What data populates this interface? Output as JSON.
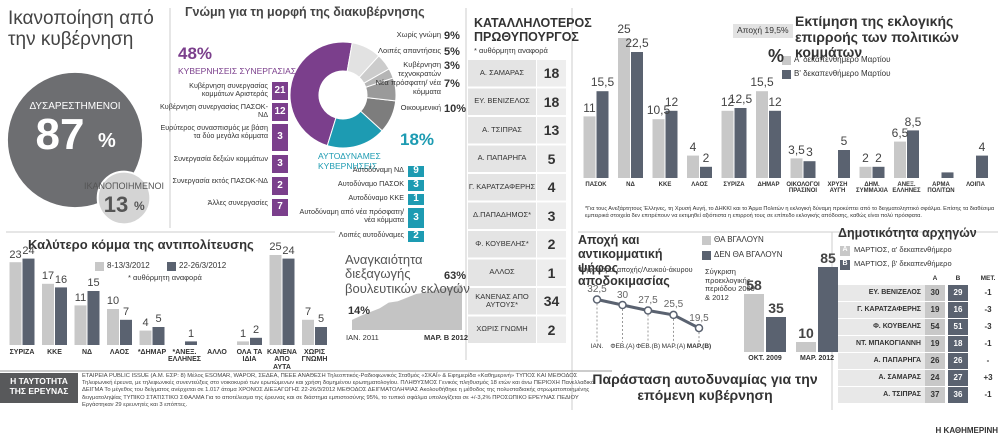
{
  "chart_data": [
    {
      "type": "bubble",
      "title": "Ικανοποίηση από την κυβέρνηση",
      "categories": [
        "ΔΥΣΑΡΕΣΤΗΜΕΝΟΙ",
        "ΙΚΑΝΟΠΟΙΗΜΕΝΟΙ"
      ],
      "values": [
        87,
        13
      ],
      "unit": "%",
      "colors": [
        "#6d6e71",
        "#d4d4d4"
      ]
    },
    {
      "type": "donut",
      "title": "Γνώμη για τη μορφή της διακυβέρνησης",
      "categories": [
        "ΚΥΒΕΡΝΗΣΕΙΣ ΣΥΝΕΡΓΑΣΙΑΣ",
        "ΑΥΤΟΔΥΝΑΜΕΣ ΚΥΒΕΡΝΗΣΕΙΣ",
        "Οικουμενική",
        "Νέα πρόσφατη/ νέα κόμματα",
        "Κυβέρνηση τεχνοκρατών",
        "Λοιπές απαντήσεις",
        "Χωρίς γνώμη"
      ],
      "values": [
        48,
        18,
        10,
        7,
        3,
        5,
        9
      ],
      "value_labels": [
        "48%",
        "18%",
        "10%",
        "7%",
        "3%",
        "5%",
        "9%"
      ],
      "colors": [
        "#7b3f8c",
        "#1d9bb2",
        "#7d7d7d",
        "#9a9a9a",
        "#b5b5b5",
        "#cccccc",
        "#e2e2e2"
      ],
      "breakdowns": [
        {
          "categories": [
            "Κυβέρνηση συνεργασίας κομμάτων Αριστεράς",
            "Κυβέρνηση συνεργασίας ΠΑΣΟΚ-ΝΔ",
            "Ευρύτερος συνασπισμός με βάση τα δύο μεγάλα κόμματα",
            "Συνεργασία δεξιών κομμάτων",
            "Συνεργασία εκτός ΠΑΣΟΚ-ΝΔ",
            "Άλλες συνεργασίες"
          ],
          "values": [
            21,
            12,
            3,
            3,
            2,
            7
          ]
        },
        {
          "categories": [
            "Αυτοδύναμη ΝΔ",
            "Αυτοδύναμο ΠΑΣΟΚ",
            "Αυτοδύναμο ΚΚΕ",
            "Αυτοδύναμη από νέα πρόσφατη/ νέα κόμματα",
            "Λοιπές αυτοδύναμες"
          ],
          "values": [
            9,
            3,
            1,
            3,
            2
          ]
        }
      ]
    },
    {
      "type": "ranking",
      "title": "ΚΑΤΑΛΛΗΛΟΤΕΡΟΣ ΠΡΩΘΥΠΟΥΡΓΟΣ",
      "subtitle": "* αυθόρμητη αναφορά",
      "categories": [
        "Α. ΣΑΜΑΡΑΣ",
        "ΕΥ. ΒΕΝΙΖΕΛΟΣ",
        "Α. ΤΣΙΠΡΑΣ",
        "Α. ΠΑΠΑΡΗΓΑ",
        "Γ. ΚΑΡΑΤΖΑΦΕΡΗΣ",
        "Δ.ΠΑΠΑΔΗΜΟΣ*",
        "Φ. ΚΟΥΒΕΛΗΣ*",
        "ΑΛΛΟΣ",
        "ΚΑΝΕΝΑΣ ΑΠΟ ΑΥΤΟΥΣ*",
        "ΧΩΡΙΣ ΓΝΩΜΗ"
      ],
      "values": [
        18,
        18,
        13,
        5,
        4,
        3,
        2,
        1,
        34,
        2
      ]
    },
    {
      "type": "bar",
      "title": "Εκτίμηση της εκλογικής επιρροής των πολιτικών κομμάτων",
      "unit": "%",
      "note": "Αποχή 19,5%",
      "categories": [
        "ΠΑΣΟΚ",
        "ΝΔ",
        "ΚΚΕ",
        "ΛΑΟΣ",
        "ΣΥΡΙΖΑ",
        "ΔΗΜΑΡ",
        "ΟΙΚΟΛΟΓΟΙ ΠΡΑΣΙΝΟΙ",
        "ΧΡΥΣΗ ΑΥΓΗ",
        "ΔΗΜ. ΣΥΜΜΑΧΙΑ",
        "ΑΝΕΞ. ΕΛΛΗΝΕΣ",
        "ΑΡΜΑ ΠΟΛΙΤΩΝ",
        "ΛΟΙΠΑ"
      ],
      "series": [
        {
          "name": "Α' δεκαπενθήμερο Μαρτίου",
          "color": "#c8c8c8",
          "values": [
            11,
            25,
            10.5,
            4,
            12,
            15.5,
            3.5,
            null,
            2,
            6.5,
            null,
            null
          ],
          "value_labels": [
            "11",
            "25",
            "10,5",
            "4",
            "12",
            "15,5",
            "3,5",
            null,
            "2",
            "6,5",
            null,
            null
          ]
        },
        {
          "name": "Β' δεκαπενθήμερο Μαρτίου",
          "color": "#5a6270",
          "values": [
            15.5,
            22.5,
            12,
            2,
            12.5,
            12,
            3,
            5,
            2,
            8.5,
            1,
            4
          ],
          "value_labels": [
            "15,5",
            "22,5",
            "12",
            "2",
            "12,5",
            "12",
            "3",
            "5",
            "2",
            "8,5",
            null,
            "4"
          ]
        }
      ],
      "footnote": "*Για τους Ανεξάρτητους Έλληνες, τη Χρυσή Αυγή, το ΔΗΚΚΙ και το Άρμα Πολιτών η εκλογική δύναμη προκύπτει από το δειγματοληπτικό σφάλμα. Επίσης τα διαθέσιμα εμπειρικά στοιχεία δεν επιτρέπουν να εκτιμηθεί αξιόπιστα η επιρροή τους σε επίπεδο εκλογικής απόδοσης, καθώς είναι πολύ πρόσφατα."
    },
    {
      "type": "bar",
      "title": "Καλύτερο κόμμα της αντιπολίτευσης",
      "subtitle": "* αυθόρμητη αναφορά",
      "categories": [
        "ΣΥΡΙΖΑ",
        "ΚΚΕ",
        "ΝΔ",
        "ΛΑΟΣ",
        "*ΔΗΜΑΡ",
        "*ΑΝΕΞ. ΕΛΛΗΝΕΣ",
        "ΑΛΛΟ",
        "ΟΛΑ ΤΑ ΙΔΙΑ",
        "ΚΑΝΕΝΑ ΑΠΟ ΑΥΤΑ",
        "ΧΩΡΙΣ ΓΝΩΜΗ"
      ],
      "series": [
        {
          "name": "8-13/3/2012",
          "color": "#c8c8c8",
          "values": [
            23,
            17,
            11,
            10,
            4,
            null,
            null,
            1,
            25,
            7
          ]
        },
        {
          "name": "22-26/3/2012",
          "color": "#5a6270",
          "values": [
            24,
            16,
            15,
            7,
            5,
            1,
            null,
            2,
            24,
            5
          ]
        }
      ]
    },
    {
      "type": "area",
      "title": "Αναγκαιότητα διεξαγωγής βουλευτικών εκλογών",
      "categories": [
        "ΙΑΝ. 2011",
        null,
        null,
        null,
        null,
        null,
        null,
        null,
        null,
        null,
        null,
        null,
        "ΜΑΡ. Β 2012"
      ],
      "values": [
        14,
        20,
        25,
        30,
        38,
        40,
        45,
        50,
        52,
        55,
        58,
        60,
        63
      ],
      "value_labels": [
        "14%",
        null,
        null,
        null,
        null,
        null,
        null,
        null,
        null,
        null,
        null,
        null,
        "63%"
      ],
      "color": "#c4c4c4"
    },
    {
      "type": "line",
      "title": "Αποχή και αντικομματική ψήφος αποδοκιμασίας",
      "subtitle": "Ψηφοφόροι αποχής/Λευκού-άκυρου",
      "categories": [
        "ΙΑΝ.",
        "ΦΕΒ.(Α)",
        "ΦΕΒ.(Β)",
        "ΜΑΡ.(Α)",
        "ΜΑΡ.(Β)"
      ],
      "values": [
        32.5,
        30,
        27.5,
        25.5,
        19.5
      ],
      "value_labels": [
        "32,5",
        "30",
        "27,5",
        "25,5",
        "19,5"
      ],
      "color": "#5a6270"
    },
    {
      "type": "bar",
      "title": "Παράσταση αυτοδυναμίας για την επόμενη κυβέρνηση",
      "subtitle": "Σύγκριση προεκλογικής περιόδου 2009 & 2012",
      "categories": [
        "ΟΚΤ. 2009",
        "ΜΑΡ. 2012"
      ],
      "series": [
        {
          "name": "ΘΑ ΒΓΑΛΟΥΝ",
          "color": "#c8c8c8",
          "values": [
            58,
            10
          ]
        },
        {
          "name": "ΔΕΝ ΘΑ ΒΓΑΛΟΥΝ",
          "color": "#5a6270",
          "values": [
            35,
            85
          ]
        }
      ]
    },
    {
      "type": "table",
      "title": "Δημοτικότητα αρχηγών",
      "legend": [
        {
          "key": "Α",
          "label": "ΜΑΡΤΙΟΣ, α' δεκαπενθήμερο"
        },
        {
          "key": "Β",
          "label": "ΜΑΡΤΙΟΣ, β' δεκαπενθήμερο"
        }
      ],
      "columns": [
        "Α",
        "Β",
        "ΜΕΤ."
      ],
      "rows": [
        [
          "ΕΥ. ΒΕΝΙΖΕΛΟΣ",
          30,
          29,
          "-1"
        ],
        [
          "Γ. ΚΑΡΑΤΖΑΦΕΡΗΣ",
          19,
          16,
          "-3"
        ],
        [
          "Φ. ΚΟΥΒΕΛΗΣ",
          54,
          51,
          "-3"
        ],
        [
          "ΝΤ. ΜΠΑΚΟΓΙΑΝΝΗ",
          19,
          18,
          "-1"
        ],
        [
          "Α. ΠΑΠΑΡΗΓΑ",
          26,
          26,
          "-"
        ],
        [
          "Α. ΣΑΜΑΡΑΣ",
          24,
          27,
          "+3"
        ],
        [
          "Α. ΤΣΙΠΡΑΣ",
          37,
          36,
          "-1"
        ]
      ]
    }
  ],
  "footer": {
    "heading": "Η ΤΑΥΤΟΤΗΤΑ ΤΗΣ ΕΡΕΥΝΑΣ",
    "text": "ΕΤΑΙΡΕΙΑ PUBLIC ISSUE (Α.Μ. ΕΣΡ: 8) Μέλος ESOMAR, WAPOR, ΣΕΔΕΑ, ΠΕΕΕ ΑΝΑΘΕΣΗ Τηλεοπτικός-Ραδιοφωνικός Σταθμός «ΣΚΑΪ» & Εφημερίδα «Καθημερινή» ΤΥΠΟΣ ΚΑΙ ΜΕΘΟΔΟΣ Τηλεφωνική έρευνα, με τηλεφωνικές συνεντεύξεις στο νοικοκυριό των ερωτώμενων και χρήση δομημένου ερωτηματολογίου. ΠΛΗΘΥΣΜΟΣ Γενικός πληθυσμός 18 ετών και άνω ΠΕΡΙΟΧΗ Πανελλαδικά ΔΕΙΓΜΑ Το μέγεθος του δείγματος ανέρχεται σε 1.017 άτομα ΧΡΟΝΟΣ ΔΙΕΞΑΓΩΓΗΣ 22-26/3/2012 ΜΕΘΟΔΟΣ ΔΕΙΓΜΑΤΟΛΗΨΙΑΣ Ακολουθήθηκε η μέθοδος της πολυσταδιακής στρωματοποιημένης δειγματοληψίας ΤΥΠΙΚΟ ΣΤΑΤΙΣΤΙΚΟ ΣΦΑΛΜΑ Για το αποτέλεσμα της έρευνας και σε διάστημα εμπιστοσύνης 95%, το τυπικό σφάλμα υπολογίζεται σε +/-3,2% ΠΡΟΣΩΠΙΚΟ ΕΡΕΥΝΑΣ ΠΕΔΙΟΥ Εργάστηκαν 29 ερευνητές και 3 επόπτες.",
    "source": "Η ΚΑΘΗΜΕΡΙΝΗ"
  }
}
